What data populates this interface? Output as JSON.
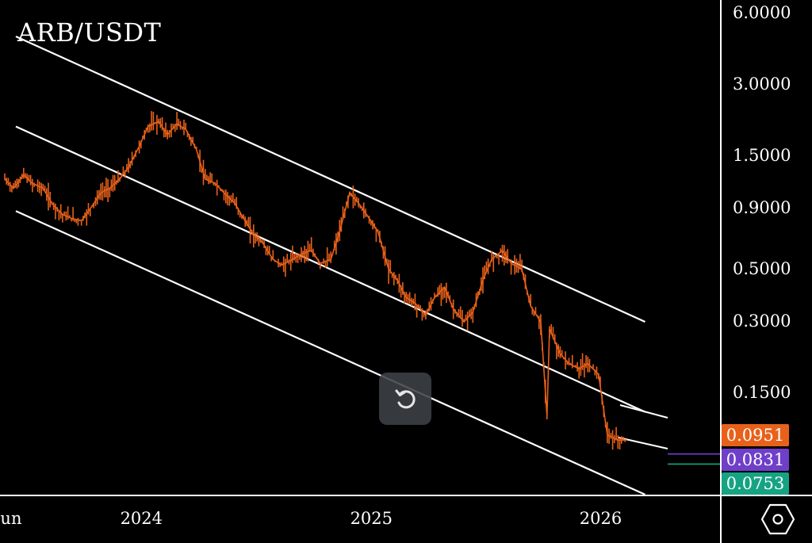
{
  "symbol": "ARB/USDT",
  "colors": {
    "background": "#000000",
    "candles": "#e8611a",
    "channel_lines": "#ffffff",
    "badge_current": "#e8611a",
    "badge_support_1": "#6f3fc9",
    "badge_support_2": "#16a383"
  },
  "icons": {
    "reset": "rotate-ccw-icon",
    "settings": "hexagon-gear-icon"
  },
  "chart_data": {
    "type": "line",
    "title": "ARB/USDT",
    "xlabel": "",
    "ylabel": "",
    "y_scale": "log",
    "ylim": [
      0.065,
      6.5
    ],
    "x_tick_labels": [
      "Jun",
      "2024",
      "2025",
      "2026"
    ],
    "x_tick_dates": [
      "2023-06-01",
      "2024-01-01",
      "2025-01-01",
      "2026-01-01"
    ],
    "y_tick_labels": [
      "6.0000",
      "3.0000",
      "1.5000",
      "0.9000",
      "0.5000",
      "0.3000",
      "0.1500"
    ],
    "y_ticks": [
      6.0,
      3.0,
      1.5,
      0.9,
      0.5,
      0.3,
      0.15
    ],
    "grid": false,
    "series": [
      {
        "name": "",
        "x": [
          "2023-06-01",
          "2023-06-15",
          "2023-07-01",
          "2023-07-15",
          "2023-08-01",
          "2023-08-15",
          "2023-09-01",
          "2023-09-15",
          "2023-10-01",
          "2023-10-15",
          "2023-11-01",
          "2023-11-15",
          "2023-12-01",
          "2023-12-15",
          "2024-01-01",
          "2024-01-15",
          "2024-02-01",
          "2024-02-15",
          "2024-03-01",
          "2024-03-15",
          "2024-04-01",
          "2024-04-15",
          "2024-05-01",
          "2024-05-15",
          "2024-06-01",
          "2024-06-15",
          "2024-07-01",
          "2024-07-15",
          "2024-08-01",
          "2024-08-15",
          "2024-09-01",
          "2024-09-15",
          "2024-10-01",
          "2024-10-15",
          "2024-11-01",
          "2024-11-15",
          "2024-12-01",
          "2024-12-15",
          "2025-01-01",
          "2025-01-15",
          "2025-02-01",
          "2025-02-15",
          "2025-03-01",
          "2025-03-15",
          "2025-04-01",
          "2025-04-15",
          "2025-05-01",
          "2025-05-15",
          "2025-06-01",
          "2025-06-15",
          "2025-07-01",
          "2025-07-15",
          "2025-08-01",
          "2025-08-15",
          "2025-09-01",
          "2025-09-15",
          "2025-10-01",
          "2025-10-11",
          "2025-10-15",
          "2025-11-01",
          "2025-11-15",
          "2025-12-01",
          "2025-12-15",
          "2026-01-01",
          "2026-01-15",
          "2026-02-01",
          "2026-02-15"
        ],
        "y": [
          1.2,
          1.1,
          1.25,
          1.15,
          1.1,
          0.95,
          0.85,
          0.82,
          0.8,
          0.9,
          1.05,
          1.1,
          1.2,
          1.35,
          1.65,
          2.0,
          2.1,
          1.85,
          2.05,
          1.95,
          1.6,
          1.2,
          1.15,
          1.05,
          0.95,
          0.82,
          0.7,
          0.65,
          0.55,
          0.52,
          0.55,
          0.58,
          0.6,
          0.53,
          0.55,
          0.72,
          1.05,
          0.95,
          0.82,
          0.72,
          0.5,
          0.45,
          0.38,
          0.36,
          0.32,
          0.38,
          0.42,
          0.34,
          0.3,
          0.33,
          0.45,
          0.55,
          0.6,
          0.53,
          0.5,
          0.35,
          0.3,
          0.12,
          0.28,
          0.22,
          0.2,
          0.19,
          0.2,
          0.18,
          0.1,
          0.095,
          0.0951
        ]
      }
    ],
    "channel": {
      "upper": {
        "x": [
          "2023-06-01",
          "2026-03-01"
        ],
        "y": [
          4.8,
          0.3
        ]
      },
      "middle": {
        "x": [
          "2023-06-01",
          "2026-03-01"
        ],
        "y": [
          2.0,
          0.125
        ]
      },
      "lower": {
        "x": [
          "2023-06-01",
          "2026-03-01"
        ],
        "y": [
          0.88,
          0.056
        ]
      }
    },
    "price_levels": [
      {
        "label": "0.0951",
        "value": 0.0951,
        "color": "#e8611a"
      },
      {
        "label": "0.0831",
        "value": 0.0831,
        "color": "#6f3fc9"
      },
      {
        "label": "0.0753",
        "value": 0.0753,
        "color": "#16a383"
      }
    ]
  }
}
